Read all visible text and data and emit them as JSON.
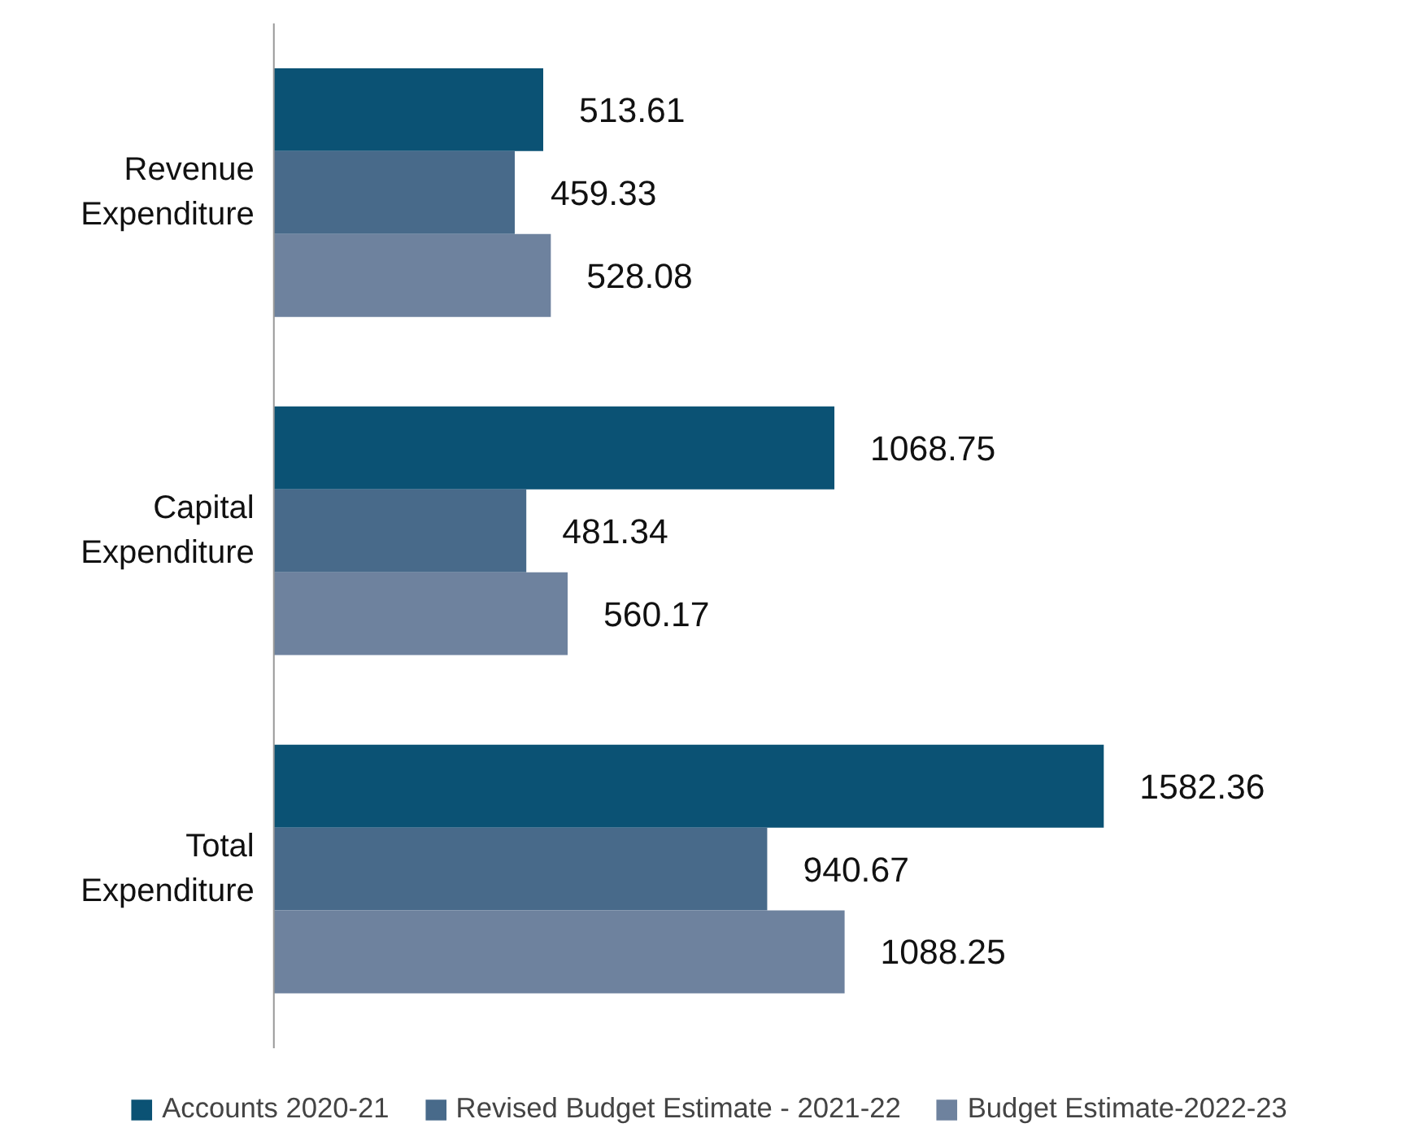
{
  "chart_data": {
    "type": "bar",
    "orientation": "horizontal",
    "data_labels": true,
    "legend": "bottom",
    "categories": [
      "Revenue Expenditure",
      "Capital Expenditure",
      "Total Expenditure"
    ],
    "series": [
      {
        "name": "Accounts 2020-21",
        "color": "#0b5274",
        "values": [
          513.61,
          1068.75,
          1582.36
        ]
      },
      {
        "name": "Revised Budget Estimate - 2021-22",
        "color": "#486a8a",
        "values": [
          459.33,
          481.34,
          940.67
        ]
      },
      {
        "name": "Budget Estimate-2022-23",
        "color": "#6e829e",
        "values": [
          528.08,
          560.17,
          1088.25
        ]
      }
    ]
  }
}
